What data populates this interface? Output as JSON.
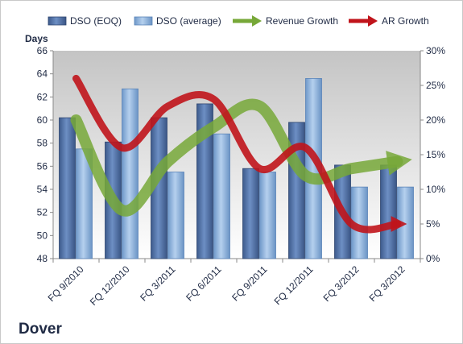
{
  "company": "Dover",
  "chart_data": {
    "type": "bar",
    "categories": [
      "FQ 9/2010",
      "FQ 12/2010",
      "FQ 3/2011",
      "FQ 6/2011",
      "FQ 9/2011",
      "FQ 12/2011",
      "FQ 3/2012",
      "FQ 3/2012"
    ],
    "series": [
      {
        "name": "DSO (EOQ)",
        "type": "bar",
        "axis": "left",
        "values": [
          60.2,
          58.1,
          60.2,
          61.4,
          55.8,
          59.8,
          56.1,
          56.1
        ]
      },
      {
        "name": "DSO (average)",
        "type": "bar",
        "axis": "left",
        "values": [
          57.5,
          62.7,
          55.5,
          58.8,
          55.5,
          63.6,
          54.2,
          54.2
        ]
      },
      {
        "name": "Revenue Growth",
        "type": "line",
        "axis": "right",
        "values": [
          20,
          7,
          14,
          19,
          22,
          12,
          13,
          14
        ]
      },
      {
        "name": "AR Growth",
        "type": "line",
        "axis": "right",
        "values": [
          26,
          16,
          22,
          23,
          13,
          16,
          5,
          5
        ]
      }
    ],
    "ylabel": "Days",
    "ylim": [
      48,
      66
    ],
    "yticks": [
      "48",
      "50",
      "52",
      "54",
      "56",
      "58",
      "60",
      "62",
      "64",
      "66"
    ],
    "y2lim": [
      0,
      30
    ],
    "y2ticks": [
      "0%",
      "5%",
      "10%",
      "15%",
      "20%",
      "25%",
      "30%"
    ],
    "grid": false,
    "legend_position": "top",
    "colors": {
      "bar_eoq": "#4f6fa8",
      "bar_avg": "#8db3e2",
      "revenue_line": "#77a838",
      "ar_line": "#c0141b",
      "plot_bg_top": "#c4c4c4",
      "plot_bg_bottom": "#ffffff"
    }
  }
}
